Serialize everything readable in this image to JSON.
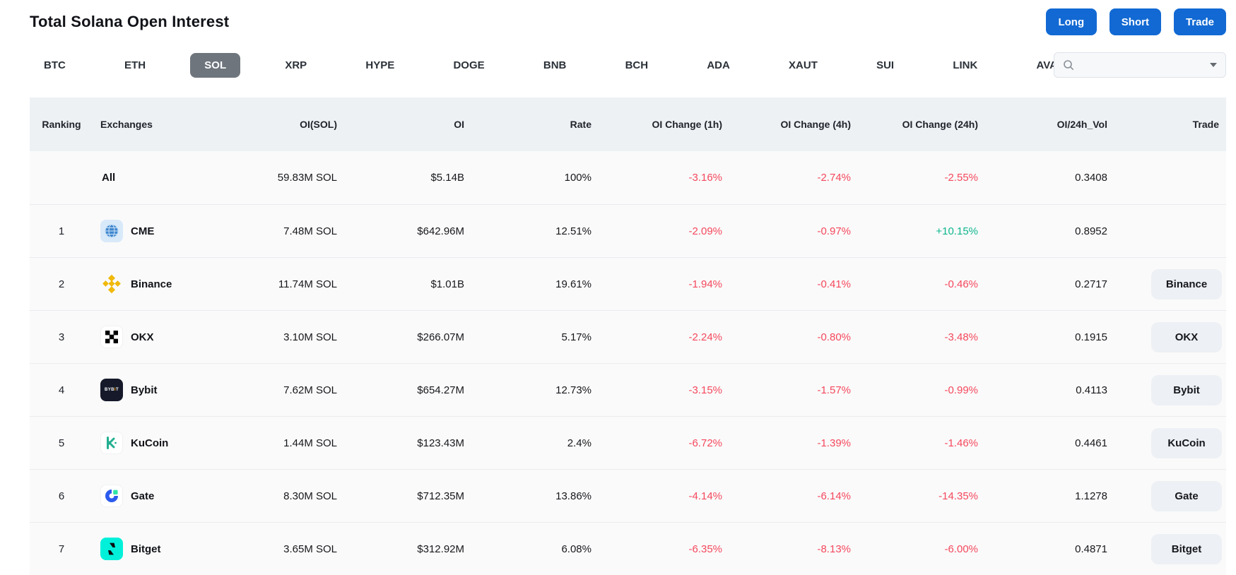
{
  "header": {
    "title": "Total Solana Open Interest",
    "actions": [
      {
        "label": "Long"
      },
      {
        "label": "Short"
      },
      {
        "label": "Trade"
      }
    ]
  },
  "tabs": {
    "items": [
      {
        "label": "BTC",
        "selected": false
      },
      {
        "label": "ETH",
        "selected": false
      },
      {
        "label": "SOL",
        "selected": true
      },
      {
        "label": "XRP",
        "selected": false
      },
      {
        "label": "HYPE",
        "selected": false
      },
      {
        "label": "DOGE",
        "selected": false
      },
      {
        "label": "BNB",
        "selected": false
      },
      {
        "label": "BCH",
        "selected": false
      },
      {
        "label": "ADA",
        "selected": false
      },
      {
        "label": "XAUT",
        "selected": false
      },
      {
        "label": "SUI",
        "selected": false
      },
      {
        "label": "LINK",
        "selected": false
      },
      {
        "label": "AVAX",
        "selected": false
      }
    ],
    "search": {
      "value": "",
      "placeholder": ""
    }
  },
  "table": {
    "columns": [
      "Ranking",
      "Exchanges",
      "OI(SOL)",
      "OI",
      "Rate",
      "OI Change (1h)",
      "OI Change (4h)",
      "OI Change (24h)",
      "OI/24h_Vol",
      "Trade"
    ],
    "rows": [
      {
        "ranking": "",
        "exchange": "All",
        "icon": null,
        "oi_sol": "59.83M SOL",
        "oi": "$5.14B",
        "rate": "100%",
        "chg_1h": "-3.16%",
        "chg_4h": "-2.74%",
        "chg_24h": "-2.55%",
        "oi_24h_vol": "0.3408",
        "trade": null
      },
      {
        "ranking": "1",
        "exchange": "CME",
        "icon": "cme-globe-icon",
        "oi_sol": "7.48M SOL",
        "oi": "$642.96M",
        "rate": "12.51%",
        "chg_1h": "-2.09%",
        "chg_4h": "-0.97%",
        "chg_24h": "+10.15%",
        "oi_24h_vol": "0.8952",
        "trade": null
      },
      {
        "ranking": "2",
        "exchange": "Binance",
        "icon": "binance-icon",
        "oi_sol": "11.74M SOL",
        "oi": "$1.01B",
        "rate": "19.61%",
        "chg_1h": "-1.94%",
        "chg_4h": "-0.41%",
        "chg_24h": "-0.46%",
        "oi_24h_vol": "0.2717",
        "trade": "Binance"
      },
      {
        "ranking": "3",
        "exchange": "OKX",
        "icon": "okx-icon",
        "oi_sol": "3.10M SOL",
        "oi": "$266.07M",
        "rate": "5.17%",
        "chg_1h": "-2.24%",
        "chg_4h": "-0.80%",
        "chg_24h": "-3.48%",
        "oi_24h_vol": "0.1915",
        "trade": "OKX"
      },
      {
        "ranking": "4",
        "exchange": "Bybit",
        "icon": "bybit-icon",
        "oi_sol": "7.62M SOL",
        "oi": "$654.27M",
        "rate": "12.73%",
        "chg_1h": "-3.15%",
        "chg_4h": "-1.57%",
        "chg_24h": "-0.99%",
        "oi_24h_vol": "0.4113",
        "trade": "Bybit"
      },
      {
        "ranking": "5",
        "exchange": "KuCoin",
        "icon": "kucoin-icon",
        "oi_sol": "1.44M SOL",
        "oi": "$123.43M",
        "rate": "2.4%",
        "chg_1h": "-6.72%",
        "chg_4h": "-1.39%",
        "chg_24h": "-1.46%",
        "oi_24h_vol": "0.4461",
        "trade": "KuCoin"
      },
      {
        "ranking": "6",
        "exchange": "Gate",
        "icon": "gate-icon",
        "oi_sol": "8.30M SOL",
        "oi": "$712.35M",
        "rate": "13.86%",
        "chg_1h": "-4.14%",
        "chg_4h": "-6.14%",
        "chg_24h": "-14.35%",
        "oi_24h_vol": "1.1278",
        "trade": "Gate"
      },
      {
        "ranking": "7",
        "exchange": "Bitget",
        "icon": "bitget-icon",
        "oi_sol": "3.65M SOL",
        "oi": "$312.92M",
        "rate": "6.08%",
        "chg_1h": "-6.35%",
        "chg_4h": "-8.13%",
        "chg_24h": "-6.00%",
        "oi_24h_vol": "0.4871",
        "trade": "Bitget"
      }
    ]
  },
  "colors": {
    "accent_blue": "#1269d3",
    "negative_red": "#f5485d",
    "positive_green": "#0eb78d",
    "selected_tab_gray": "#6e757d",
    "header_band": "#eef1f4"
  }
}
